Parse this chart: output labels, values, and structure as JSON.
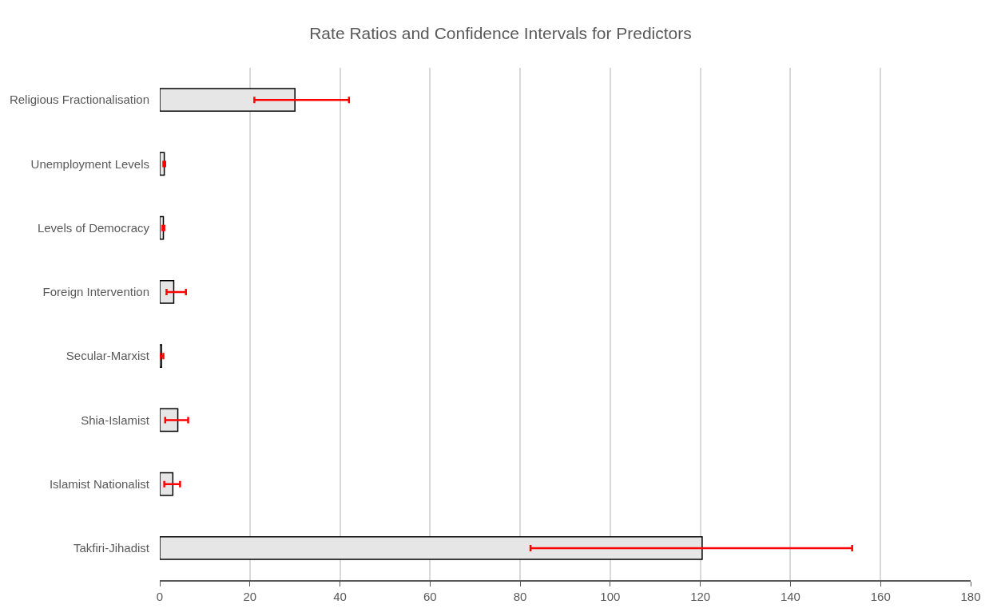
{
  "chart_data": {
    "type": "bar",
    "orientation": "horizontal",
    "title": "Rate Ratios and Confidence Intervals for Predictors",
    "categories": [
      "Religious Fractionalisation",
      "Unemployment Levels",
      "Levels of Democracy",
      "Foreign Intervention",
      "Secular-Marxist",
      "Shia-Islamist",
      "Islamist Nationalist",
      "Takfiri-Jihadist"
    ],
    "values": [
      30.0,
      1.0,
      0.8,
      3.1,
      0.4,
      4.0,
      2.9,
      120.4
    ],
    "errors": [
      [
        21.0,
        42.0
      ],
      [
        0.8,
        1.2
      ],
      [
        0.6,
        1.0
      ],
      [
        1.5,
        5.8
      ],
      [
        0.2,
        0.8
      ],
      [
        1.2,
        6.3
      ],
      [
        1.0,
        4.5
      ],
      [
        82.3,
        153.7
      ]
    ],
    "color": "#e6e6e6",
    "xlim": [
      0,
      180
    ],
    "xticks": [
      0,
      20,
      40,
      60,
      80,
      100,
      120,
      140,
      160,
      180
    ],
    "grid": "x"
  }
}
